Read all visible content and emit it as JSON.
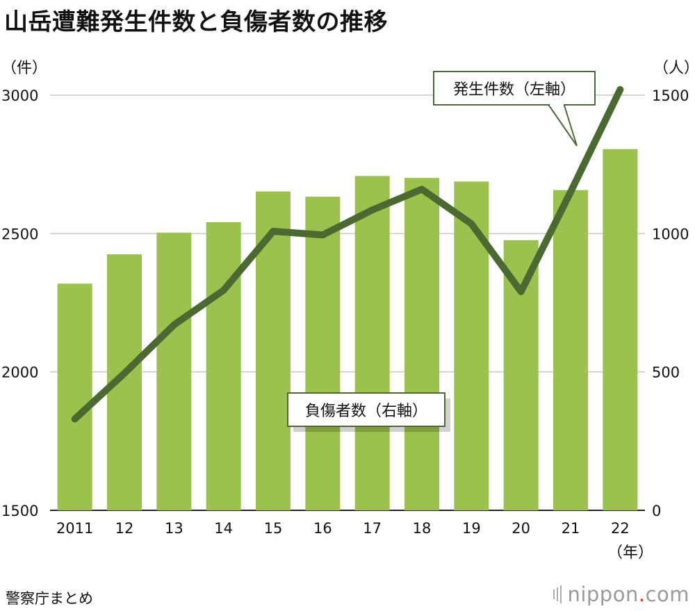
{
  "title": "山岳遭難発生件数と負傷者数の推移",
  "left_unit": "（件）",
  "right_unit": "（人）",
  "x_unit": "（年）",
  "source": "警察庁まとめ",
  "brand": {
    "name": "nippon",
    "dot": ".",
    "suffix": "com"
  },
  "colors": {
    "bar": "#9bc24c",
    "line": "#4b6a31",
    "grid": "#c8c8c8",
    "callout_border": "#4b6a31"
  },
  "chart_data": {
    "type": "bar",
    "categories": [
      "2011",
      "12",
      "13",
      "14",
      "15",
      "16",
      "17",
      "18",
      "19",
      "20",
      "21",
      "22"
    ],
    "series": [
      {
        "name": "発生件数（左軸）",
        "type": "bar",
        "axis": "left",
        "values": [
          2319,
          2425,
          2503,
          2541,
          2652,
          2633,
          2708,
          2701,
          2688,
          2476,
          2657,
          2805
        ]
      },
      {
        "name": "負傷者数（右軸）",
        "type": "line",
        "axis": "right",
        "values": [
          330,
          495,
          670,
          795,
          1008,
          995,
          1085,
          1160,
          1035,
          790,
          1150,
          1520
        ]
      }
    ],
    "y_left": {
      "lim": [
        1500,
        3000
      ],
      "ticks": [
        "1500",
        "2000",
        "2500",
        "3000"
      ]
    },
    "y_right": {
      "lim": [
        0,
        1500
      ],
      "ticks": [
        "0",
        "500",
        "1000",
        "1500"
      ]
    },
    "grid": true
  }
}
